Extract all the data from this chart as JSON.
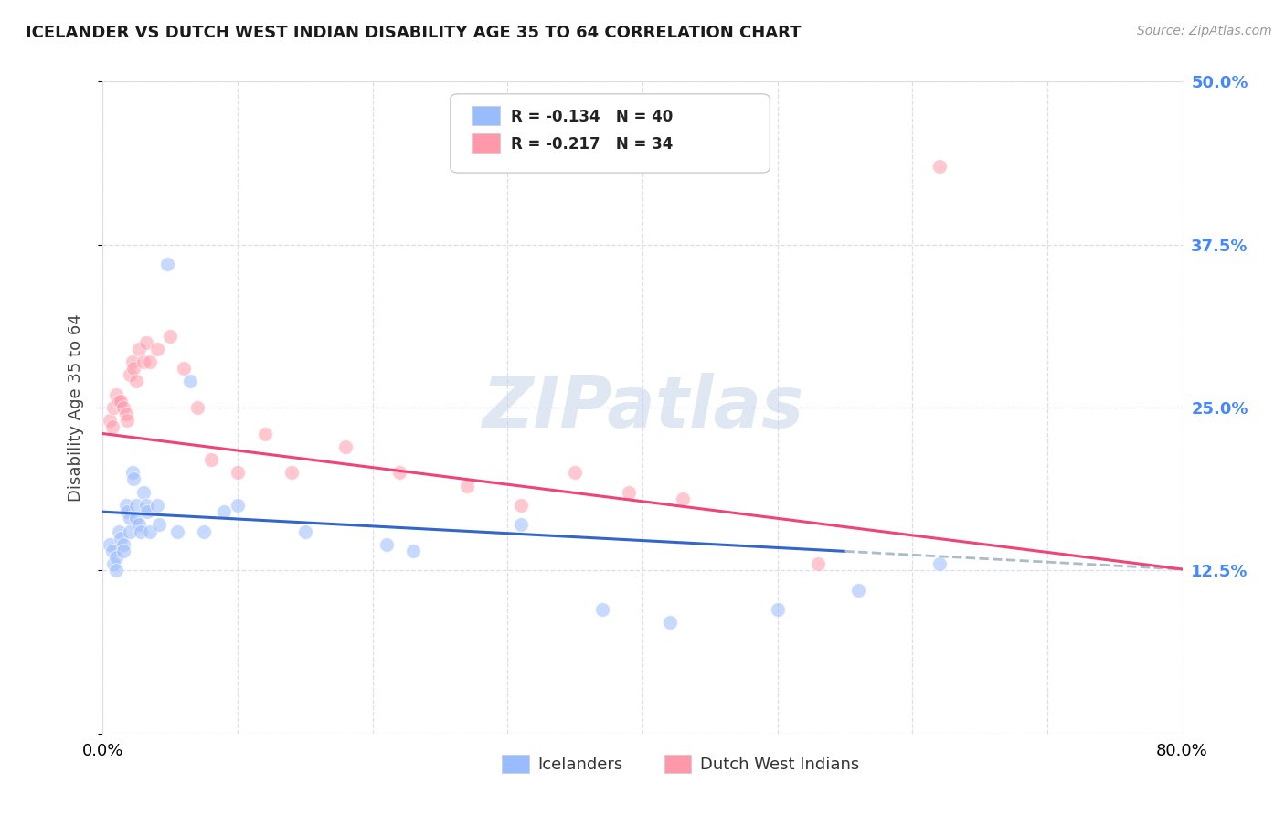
{
  "title": "ICELANDER VS DUTCH WEST INDIAN DISABILITY AGE 35 TO 64 CORRELATION CHART",
  "source": "Source: ZipAtlas.com",
  "ylabel": "Disability Age 35 to 64",
  "xlim": [
    0.0,
    0.8
  ],
  "ylim": [
    0.0,
    0.5
  ],
  "yticks": [
    0.0,
    0.125,
    0.25,
    0.375,
    0.5
  ],
  "ytick_labels_right": [
    "",
    "12.5%",
    "25.0%",
    "37.5%",
    "50.0%"
  ],
  "xticks": [
    0.0,
    0.1,
    0.2,
    0.3,
    0.4,
    0.5,
    0.6,
    0.7,
    0.8
  ],
  "xtick_labels": [
    "0.0%",
    "",
    "",
    "",
    "",
    "",
    "",
    "",
    "80.0%"
  ],
  "color_blue": "#99bbff",
  "color_pink": "#ff99aa",
  "color_line_blue": "#3366cc",
  "color_line_pink": "#ee4477",
  "color_dashed": "#aabbcc",
  "color_grid": "#ddddee",
  "color_right_axis": "#4488ff",
  "background_color": "#ffffff",
  "legend_R1": "R = -0.134",
  "legend_N1": "N = 40",
  "legend_R2": "R = -0.217",
  "legend_N2": "N = 34",
  "icelanders_x": [
    0.005,
    0.007,
    0.008,
    0.01,
    0.01,
    0.012,
    0.013,
    0.015,
    0.015,
    0.017,
    0.018,
    0.02,
    0.02,
    0.022,
    0.023,
    0.025,
    0.025,
    0.027,
    0.028,
    0.03,
    0.032,
    0.033,
    0.035,
    0.04,
    0.042,
    0.048,
    0.055,
    0.065,
    0.075,
    0.09,
    0.1,
    0.15,
    0.21,
    0.23,
    0.31,
    0.37,
    0.42,
    0.5,
    0.56,
    0.62
  ],
  "icelanders_y": [
    0.145,
    0.14,
    0.13,
    0.135,
    0.125,
    0.155,
    0.15,
    0.145,
    0.14,
    0.175,
    0.17,
    0.165,
    0.155,
    0.2,
    0.195,
    0.175,
    0.165,
    0.16,
    0.155,
    0.185,
    0.175,
    0.17,
    0.155,
    0.175,
    0.16,
    0.36,
    0.155,
    0.27,
    0.155,
    0.17,
    0.175,
    0.155,
    0.145,
    0.14,
    0.16,
    0.095,
    0.085,
    0.095,
    0.11,
    0.13
  ],
  "dutch_x": [
    0.005,
    0.007,
    0.008,
    0.01,
    0.012,
    0.013,
    0.015,
    0.017,
    0.018,
    0.02,
    0.022,
    0.023,
    0.025,
    0.027,
    0.03,
    0.032,
    0.035,
    0.04,
    0.05,
    0.06,
    0.07,
    0.08,
    0.1,
    0.12,
    0.14,
    0.18,
    0.22,
    0.27,
    0.31,
    0.35,
    0.39,
    0.43,
    0.53,
    0.62
  ],
  "dutch_y": [
    0.24,
    0.235,
    0.25,
    0.26,
    0.255,
    0.255,
    0.25,
    0.245,
    0.24,
    0.275,
    0.285,
    0.28,
    0.27,
    0.295,
    0.285,
    0.3,
    0.285,
    0.295,
    0.305,
    0.28,
    0.25,
    0.21,
    0.2,
    0.23,
    0.2,
    0.22,
    0.2,
    0.19,
    0.175,
    0.2,
    0.185,
    0.18,
    0.13,
    0.435
  ]
}
